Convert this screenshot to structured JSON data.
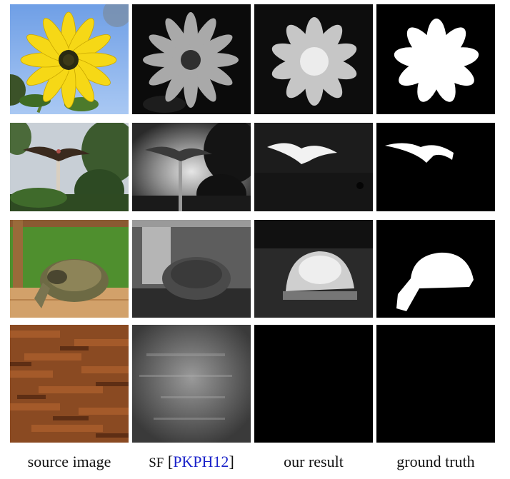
{
  "figure": {
    "captions": {
      "source": "source image",
      "sf_method": "SF",
      "sf_open": "[",
      "sf_ref": "PKPH12",
      "sf_close": "]",
      "ours": "our result",
      "truth": "ground truth"
    },
    "rows": [
      {
        "subject": "flower"
      },
      {
        "subject": "bird"
      },
      {
        "subject": "tortoise"
      },
      {
        "subject": "wood"
      }
    ]
  }
}
